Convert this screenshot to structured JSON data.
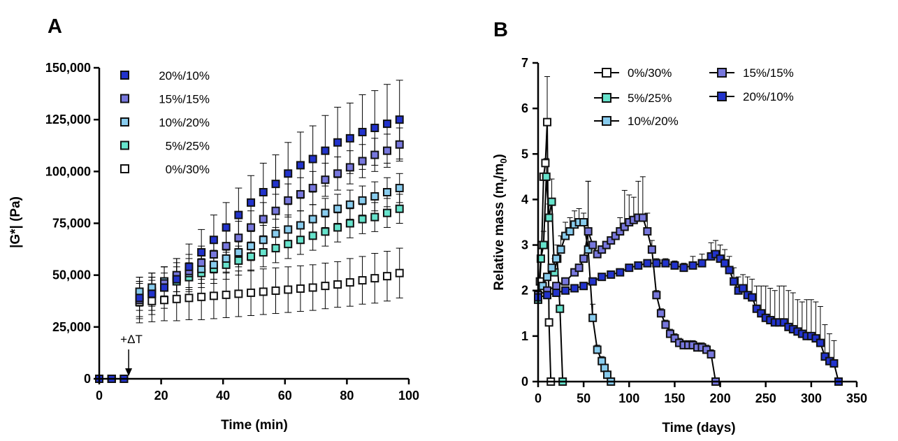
{
  "chart_data": [
    {
      "panel": "A",
      "type": "scatter",
      "xlabel": "Time (min)",
      "ylabel": "|G*| (Pa)",
      "xlim": [
        0,
        100
      ],
      "ylim": [
        0,
        150000
      ],
      "xticks": [
        "0",
        "20",
        "40",
        "60",
        "80",
        "100"
      ],
      "yticks": [
        "0",
        "25,000",
        "50,000",
        "75,000",
        "100,000",
        "125,000",
        "150,000"
      ],
      "legend_position": "top-left",
      "annotation": "+ΔT",
      "annotation_x": 9.5,
      "x": [
        0,
        4,
        8,
        13,
        17,
        21,
        25,
        29,
        33,
        37,
        41,
        45,
        49,
        53,
        57,
        61,
        65,
        69,
        73,
        77,
        81,
        85,
        89,
        93,
        97
      ],
      "series": [
        {
          "name": "20%/10%",
          "color": "#2233cc",
          "values": [
            0,
            0,
            0,
            39000,
            41000,
            44000,
            48000,
            54000,
            61000,
            67000,
            73000,
            79000,
            85000,
            90000,
            94000,
            99000,
            103000,
            106000,
            110000,
            114000,
            116000,
            119000,
            121000,
            123000,
            125000
          ],
          "errors": [
            0,
            0,
            0,
            10000,
            10000,
            10000,
            10000,
            11000,
            11000,
            12000,
            12000,
            13000,
            13000,
            14000,
            14000,
            15000,
            16000,
            16000,
            17000,
            17000,
            17000,
            18000,
            18000,
            19000,
            19000
          ]
        },
        {
          "name": "15%/15%",
          "color": "#7777dd",
          "values": [
            0,
            0,
            0,
            38000,
            41000,
            46000,
            50000,
            52000,
            56000,
            60000,
            64000,
            68000,
            73000,
            77000,
            81000,
            86000,
            89000,
            92000,
            96000,
            99000,
            102000,
            105000,
            108000,
            110000,
            113000
          ],
          "errors": [
            0,
            0,
            0,
            8000,
            8000,
            8000,
            8000,
            8000,
            8000,
            8000,
            8000,
            8000,
            8000,
            8000,
            8000,
            8000,
            8000,
            8000,
            8000,
            8000,
            8000,
            8000,
            8000,
            8000,
            8000
          ]
        },
        {
          "name": "10%/20%",
          "color": "#88ccee",
          "values": [
            0,
            0,
            0,
            42000,
            44000,
            47000,
            49000,
            51000,
            53000,
            55000,
            58000,
            61000,
            64000,
            67000,
            70000,
            72000,
            74000,
            77000,
            80000,
            82000,
            84000,
            86000,
            88000,
            90000,
            92000
          ],
          "errors": [
            0,
            0,
            0,
            7000,
            7000,
            7000,
            7000,
            7000,
            7000,
            7000,
            7000,
            7000,
            7000,
            7000,
            7000,
            7000,
            7000,
            7000,
            7000,
            7000,
            7000,
            7000,
            7000,
            7000,
            7000
          ]
        },
        {
          "name": "5%/25%",
          "color": "#66e3cc",
          "values": [
            0,
            0,
            0,
            40000,
            42000,
            44000,
            47000,
            49000,
            51000,
            53000,
            55000,
            57000,
            59000,
            61000,
            63000,
            65000,
            67000,
            69000,
            71000,
            73000,
            75000,
            77000,
            78000,
            80000,
            82000
          ],
          "errors": [
            0,
            0,
            0,
            7000,
            7000,
            7000,
            7000,
            7000,
            7000,
            7000,
            7000,
            7000,
            7000,
            7000,
            7000,
            7000,
            7000,
            7000,
            7000,
            7000,
            7000,
            7000,
            7000,
            7000,
            7000
          ]
        },
        {
          "name": "0%/30%",
          "color": "#ffffff",
          "values": [
            0,
            0,
            0,
            37000,
            37500,
            38000,
            38500,
            39000,
            39500,
            40000,
            40500,
            41000,
            41500,
            42000,
            42500,
            43000,
            43500,
            44000,
            44800,
            45500,
            46500,
            47500,
            48500,
            49500,
            51000
          ],
          "errors": [
            0,
            0,
            0,
            10000,
            10000,
            10000,
            10500,
            10500,
            11000,
            11000,
            11000,
            11000,
            11000,
            11000,
            11000,
            11000,
            11000,
            11000,
            11000,
            11000,
            11500,
            11500,
            12000,
            12000,
            12000
          ]
        }
      ]
    },
    {
      "panel": "B",
      "type": "line",
      "xlabel": "Time (days)",
      "ylabel_main": "Relative mass (m",
      "ylabel_sub1": "t",
      "ylabel_mid": "/m",
      "ylabel_sub2": "0",
      "ylabel_end": ")",
      "xlim": [
        0,
        350
      ],
      "ylim": [
        0,
        7
      ],
      "xticks": [
        "0",
        "50",
        "100",
        "150",
        "200",
        "250",
        "300",
        "350"
      ],
      "yticks": [
        "0",
        "1",
        "2",
        "3",
        "4",
        "5",
        "6",
        "7"
      ],
      "legend_position": "top-center",
      "series": [
        {
          "name": "0%/30%",
          "color": "#ffffff",
          "x": [
            0,
            2,
            4,
            6,
            8,
            10,
            12,
            14
          ],
          "y": [
            1.8,
            2.2,
            3.0,
            4.5,
            4.8,
            5.7,
            1.3,
            0
          ],
          "err": [
            0,
            0,
            0,
            0,
            0,
            1.0,
            0,
            0
          ]
        },
        {
          "name": "5%/25%",
          "color": "#66e3cc",
          "x": [
            0,
            3,
            6,
            9,
            12,
            15,
            18,
            21,
            24,
            27
          ],
          "y": [
            1.8,
            2.7,
            3.0,
            4.5,
            3.6,
            3.95,
            2.4,
            2.7,
            1.6,
            0
          ],
          "err": [
            0,
            0,
            0.3,
            0.4,
            0.3,
            0.5,
            0.3,
            0.3,
            0,
            0
          ]
        },
        {
          "name": "10%/20%",
          "color": "#88ccee",
          "x": [
            0,
            5,
            10,
            15,
            20,
            25,
            30,
            35,
            40,
            45,
            50,
            55,
            60,
            65,
            70,
            73,
            76,
            80
          ],
          "y": [
            1.9,
            2.1,
            2.3,
            2.5,
            2.7,
            2.9,
            3.2,
            3.3,
            3.45,
            3.5,
            3.5,
            2.9,
            1.4,
            0.7,
            0.45,
            0.3,
            0.15,
            0
          ],
          "err": [
            0,
            0,
            0,
            0,
            0,
            0.3,
            0.3,
            0.3,
            0.3,
            0.3,
            0.2,
            1.5,
            0.3,
            0.1,
            0.1,
            0,
            0,
            0
          ]
        },
        {
          "name": "15%/15%",
          "color": "#7777dd",
          "x": [
            0,
            10,
            20,
            30,
            40,
            45,
            50,
            55,
            60,
            65,
            70,
            75,
            80,
            85,
            90,
            95,
            100,
            105,
            110,
            115,
            120,
            125,
            130,
            135,
            140,
            145,
            150,
            155,
            160,
            165,
            170,
            175,
            180,
            185,
            190,
            195
          ],
          "y": [
            1.9,
            2.0,
            2.1,
            2.2,
            2.4,
            2.5,
            2.7,
            3.3,
            3.0,
            2.8,
            2.9,
            3.0,
            3.1,
            3.2,
            3.3,
            3.4,
            3.5,
            3.55,
            3.6,
            3.6,
            3.3,
            2.9,
            1.9,
            1.5,
            1.25,
            1.05,
            0.95,
            0.85,
            0.8,
            0.8,
            0.8,
            0.75,
            0.75,
            0.7,
            0.6,
            0
          ],
          "err": [
            0,
            0,
            0,
            0,
            0,
            0,
            0,
            1.1,
            0,
            0,
            0,
            0,
            0,
            0,
            0.3,
            0.8,
            0.6,
            0.5,
            0.8,
            0.9,
            0.4,
            0.2,
            0.1,
            0.1,
            0.1,
            0.1,
            0.1,
            0.1,
            0.1,
            0.1,
            0.1,
            0.1,
            0.1,
            0.1,
            0.1,
            0
          ]
        },
        {
          "name": "20%/10%",
          "color": "#2233cc",
          "x": [
            0,
            10,
            20,
            30,
            40,
            50,
            60,
            70,
            80,
            90,
            100,
            110,
            120,
            130,
            140,
            150,
            160,
            170,
            180,
            190,
            195,
            200,
            205,
            210,
            215,
            220,
            225,
            230,
            235,
            240,
            245,
            250,
            255,
            260,
            265,
            270,
            275,
            280,
            285,
            290,
            295,
            300,
            305,
            310,
            315,
            320,
            325,
            330
          ],
          "y": [
            1.85,
            1.9,
            1.95,
            2.0,
            2.05,
            2.1,
            2.2,
            2.3,
            2.35,
            2.4,
            2.5,
            2.55,
            2.6,
            2.6,
            2.6,
            2.55,
            2.5,
            2.55,
            2.6,
            2.75,
            2.8,
            2.7,
            2.6,
            2.45,
            2.2,
            2.0,
            2.05,
            1.9,
            1.85,
            1.6,
            1.5,
            1.4,
            1.35,
            1.3,
            1.3,
            1.3,
            1.2,
            1.15,
            1.1,
            1.05,
            1.0,
            1.0,
            0.95,
            0.85,
            0.55,
            0.45,
            0.4,
            0
          ],
          "err": [
            0,
            0,
            0,
            0,
            0,
            0,
            0,
            0,
            0,
            0,
            0,
            0,
            0,
            0.1,
            0.1,
            0.1,
            0.1,
            0.2,
            0.2,
            0.3,
            0.3,
            0.3,
            0.3,
            0.3,
            0.3,
            0.3,
            0.3,
            0.4,
            0.4,
            0.5,
            0.6,
            0.7,
            0.7,
            0.7,
            0.8,
            0.8,
            0.8,
            0.8,
            0.7,
            0.7,
            0.8,
            0.8,
            0.8,
            0.8,
            0.7,
            0.6,
            0.5,
            0
          ]
        }
      ]
    }
  ]
}
